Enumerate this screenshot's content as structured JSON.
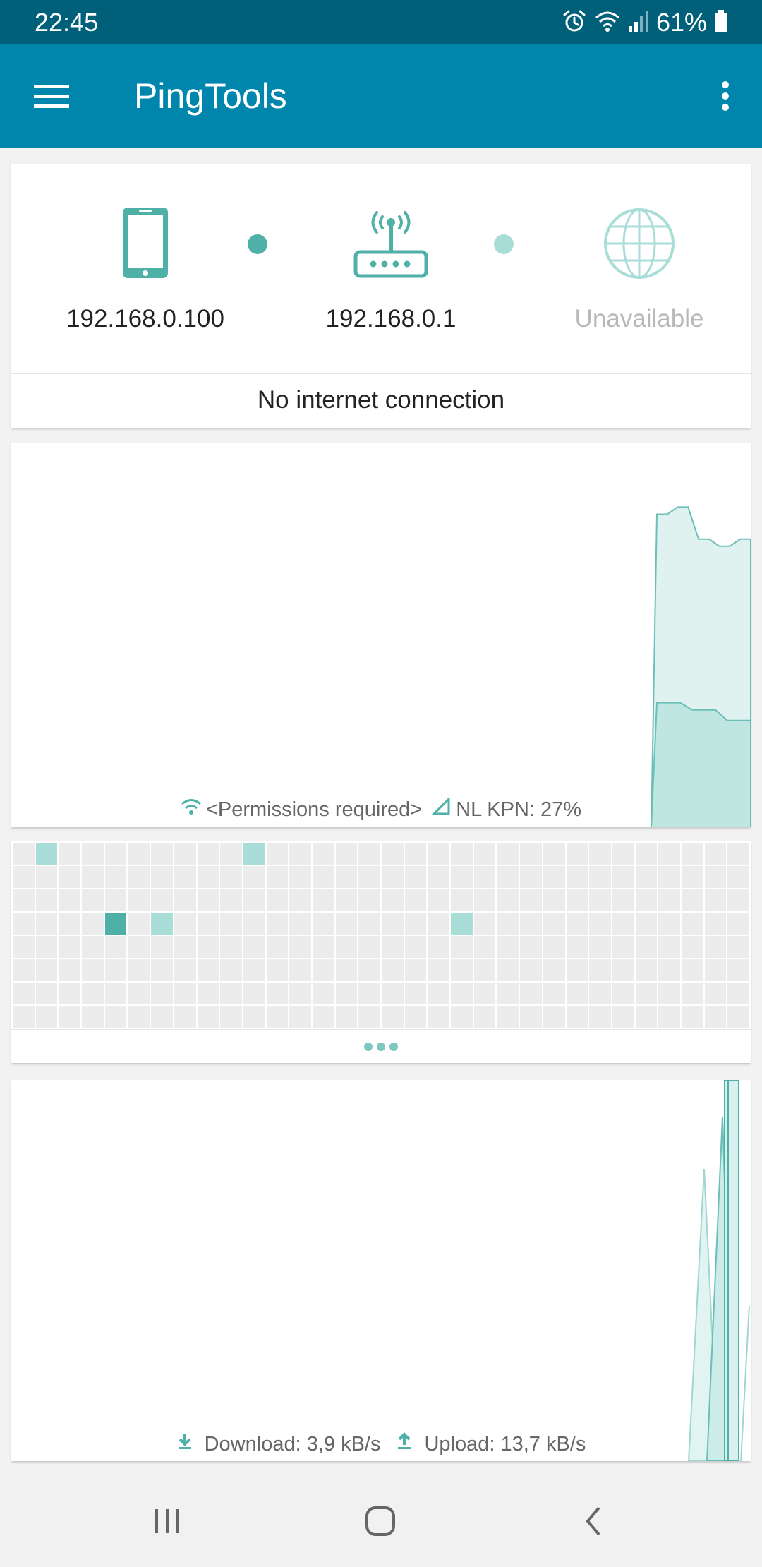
{
  "status_bar": {
    "time": "22:45",
    "battery_percent": "61%",
    "icons": [
      "alarm-icon",
      "wifi-icon",
      "signal-icon",
      "battery-icon"
    ]
  },
  "app_bar": {
    "title": "PingTools",
    "menu_icon": "hamburger-menu-icon",
    "more_icon": "more-vertical-icon"
  },
  "colors": {
    "status_bar": "#00607a",
    "app_bar": "#0085ad",
    "accent": "#4fb0a8",
    "accent_light": "#a9ddd8"
  },
  "network": {
    "device_ip": "192.168.0.100",
    "router_ip": "192.168.0.1",
    "internet_ip": "Unavailable",
    "status": "No internet connection"
  },
  "signal_graph": {
    "wifi_label": "<Permissions required>",
    "cell_label": "NL KPN: 27%",
    "wifi_series": [
      0,
      0,
      0,
      0,
      0,
      0,
      0,
      0,
      0,
      0,
      0,
      0,
      0,
      0,
      0,
      0,
      0,
      0,
      0,
      0,
      0,
      0,
      0,
      0,
      0,
      0,
      0,
      0,
      0,
      0,
      0,
      0,
      88,
      88,
      90,
      90,
      81,
      81,
      79,
      79,
      81,
      81
    ],
    "cell_series": [
      0,
      0,
      0,
      0,
      0,
      0,
      0,
      0,
      0,
      0,
      0,
      0,
      0,
      0,
      0,
      0,
      0,
      0,
      0,
      0,
      0,
      0,
      0,
      0,
      0,
      0,
      0,
      0,
      0,
      0,
      0,
      0,
      0,
      35,
      35,
      35,
      33,
      33,
      33,
      30,
      30,
      30
    ]
  },
  "heatmap": {
    "cells": [
      {
        "row": 0,
        "col": 1,
        "level": "light"
      },
      {
        "row": 0,
        "col": 10,
        "level": "light"
      },
      {
        "row": 3,
        "col": 4,
        "level": "dark"
      },
      {
        "row": 3,
        "col": 6,
        "level": "light"
      },
      {
        "row": 3,
        "col": 19,
        "level": "light"
      }
    ]
  },
  "traffic": {
    "download_label": "Download: 3,9 kB/s",
    "upload_label": "Upload: 13,7 kB/s"
  },
  "nav_bar": {
    "recents_icon": "recent-apps-icon",
    "home_icon": "home-icon",
    "back_icon": "back-icon"
  }
}
